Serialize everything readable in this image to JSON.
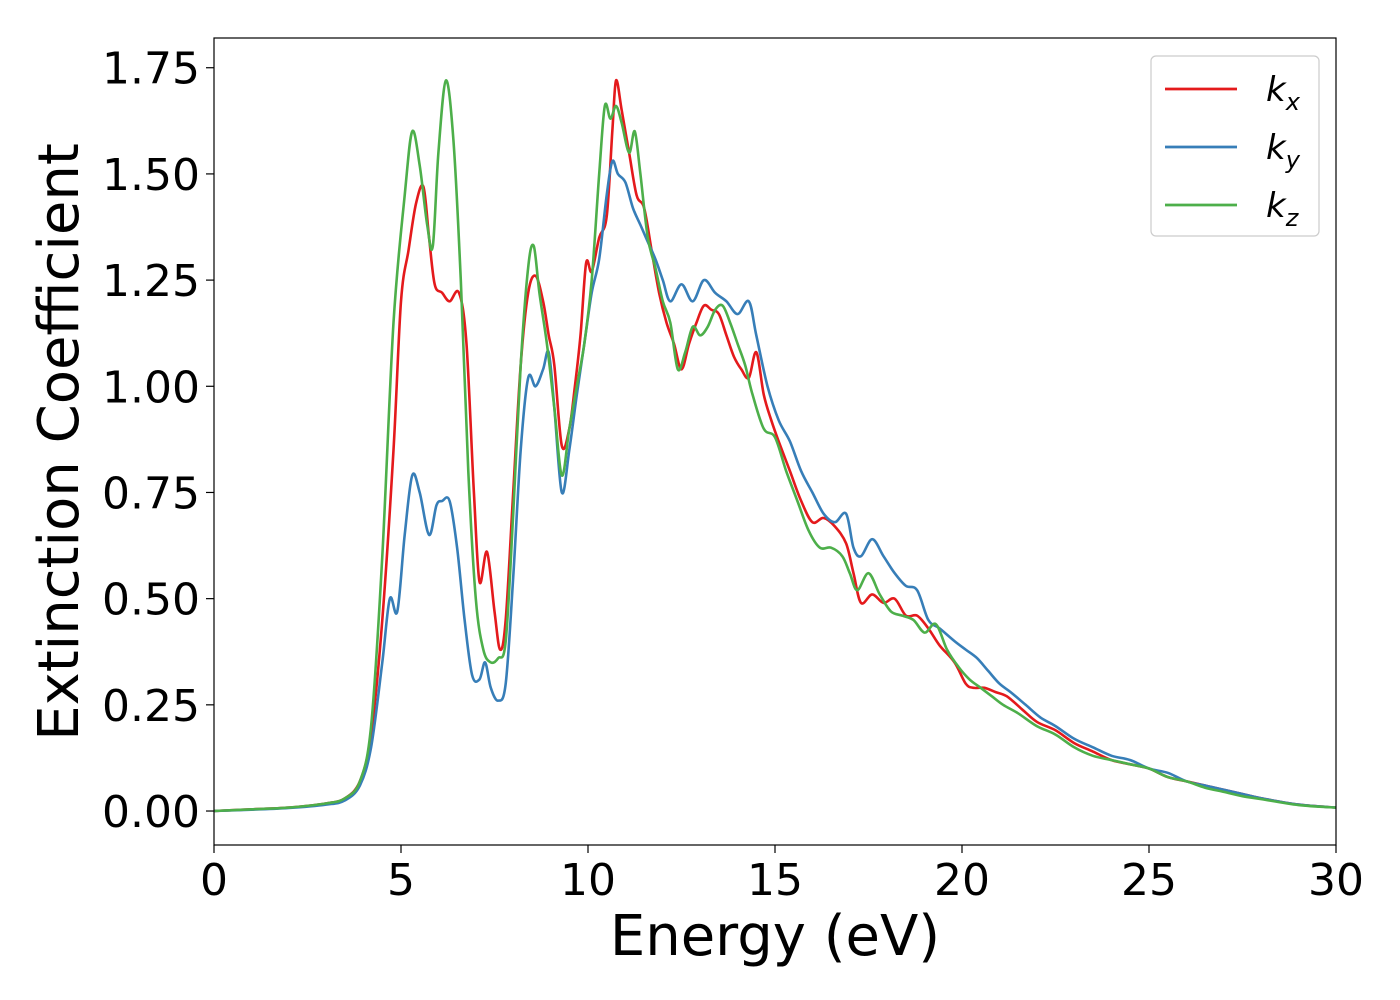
{
  "chart_data": {
    "type": "line",
    "xlabel": "Energy (eV)",
    "ylabel": "Extinction Coefficient",
    "xlim": [
      0,
      30
    ],
    "ylim": [
      -0.08,
      1.82
    ],
    "xticks": [
      0,
      5,
      10,
      15,
      20,
      25,
      30
    ],
    "xtick_labels": [
      "0",
      "5",
      "10",
      "15",
      "20",
      "25",
      "30"
    ],
    "yticks": [
      0,
      0.25,
      0.5,
      0.75,
      1.0,
      1.25,
      1.5,
      1.75
    ],
    "ytick_labels": [
      "0.00",
      "0.25",
      "0.50",
      "0.75",
      "1.00",
      "1.25",
      "1.50",
      "1.75"
    ],
    "grid": false,
    "legend_position": "top-right",
    "series": [
      {
        "name": "k_x",
        "label_base": "k",
        "label_sub": "x",
        "color": "#e41a1c",
        "points": [
          [
            0,
            0
          ],
          [
            1,
            0.004
          ],
          [
            2,
            0.008
          ],
          [
            3,
            0.018
          ],
          [
            3.5,
            0.03
          ],
          [
            3.9,
            0.07
          ],
          [
            4.2,
            0.18
          ],
          [
            4.5,
            0.45
          ],
          [
            4.8,
            0.85
          ],
          [
            5.0,
            1.2
          ],
          [
            5.2,
            1.32
          ],
          [
            5.4,
            1.43
          ],
          [
            5.6,
            1.47
          ],
          [
            5.75,
            1.35
          ],
          [
            5.9,
            1.24
          ],
          [
            6.1,
            1.22
          ],
          [
            6.3,
            1.2
          ],
          [
            6.55,
            1.22
          ],
          [
            6.75,
            1.1
          ],
          [
            6.95,
            0.75
          ],
          [
            7.1,
            0.54
          ],
          [
            7.3,
            0.61
          ],
          [
            7.5,
            0.47
          ],
          [
            7.65,
            0.38
          ],
          [
            7.8,
            0.45
          ],
          [
            8.0,
            0.75
          ],
          [
            8.2,
            1.05
          ],
          [
            8.4,
            1.22
          ],
          [
            8.6,
            1.26
          ],
          [
            8.8,
            1.2
          ],
          [
            8.95,
            1.12
          ],
          [
            9.1,
            1.05
          ],
          [
            9.3,
            0.86
          ],
          [
            9.5,
            0.9
          ],
          [
            9.65,
            1.0
          ],
          [
            9.8,
            1.12
          ],
          [
            9.95,
            1.29
          ],
          [
            10.1,
            1.27
          ],
          [
            10.3,
            1.35
          ],
          [
            10.5,
            1.4
          ],
          [
            10.65,
            1.6
          ],
          [
            10.75,
            1.72
          ],
          [
            10.9,
            1.65
          ],
          [
            11.1,
            1.55
          ],
          [
            11.3,
            1.45
          ],
          [
            11.5,
            1.42
          ],
          [
            11.7,
            1.32
          ],
          [
            11.9,
            1.22
          ],
          [
            12.1,
            1.15
          ],
          [
            12.3,
            1.1
          ],
          [
            12.5,
            1.04
          ],
          [
            12.7,
            1.1
          ],
          [
            12.9,
            1.15
          ],
          [
            13.1,
            1.19
          ],
          [
            13.3,
            1.18
          ],
          [
            13.5,
            1.17
          ],
          [
            13.7,
            1.12
          ],
          [
            13.9,
            1.07
          ],
          [
            14.1,
            1.04
          ],
          [
            14.3,
            1.02
          ],
          [
            14.5,
            1.08
          ],
          [
            14.7,
            0.98
          ],
          [
            14.9,
            0.92
          ],
          [
            15.1,
            0.87
          ],
          [
            15.4,
            0.8
          ],
          [
            15.7,
            0.73
          ],
          [
            16.0,
            0.68
          ],
          [
            16.3,
            0.69
          ],
          [
            16.6,
            0.67
          ],
          [
            16.9,
            0.63
          ],
          [
            17.1,
            0.56
          ],
          [
            17.3,
            0.49
          ],
          [
            17.6,
            0.51
          ],
          [
            17.9,
            0.49
          ],
          [
            18.2,
            0.5
          ],
          [
            18.5,
            0.46
          ],
          [
            18.8,
            0.46
          ],
          [
            19.1,
            0.43
          ],
          [
            19.4,
            0.39
          ],
          [
            19.8,
            0.35
          ],
          [
            20.1,
            0.3
          ],
          [
            20.3,
            0.29
          ],
          [
            20.6,
            0.29
          ],
          [
            20.9,
            0.28
          ],
          [
            21.2,
            0.27
          ],
          [
            21.6,
            0.24
          ],
          [
            22.0,
            0.21
          ],
          [
            22.5,
            0.19
          ],
          [
            23,
            0.16
          ],
          [
            23.5,
            0.14
          ],
          [
            24,
            0.12
          ],
          [
            24.5,
            0.11
          ],
          [
            25,
            0.1
          ],
          [
            25.5,
            0.08
          ],
          [
            26,
            0.07
          ],
          [
            26.5,
            0.06
          ],
          [
            27,
            0.05
          ],
          [
            27.5,
            0.04
          ],
          [
            28,
            0.03
          ],
          [
            29,
            0.015
          ],
          [
            30,
            0.008
          ]
        ]
      },
      {
        "name": "k_y",
        "label_base": "k",
        "label_sub": "y",
        "color": "#377eb8",
        "points": [
          [
            0,
            0
          ],
          [
            1,
            0.003
          ],
          [
            2,
            0.007
          ],
          [
            3,
            0.015
          ],
          [
            3.5,
            0.025
          ],
          [
            3.9,
            0.06
          ],
          [
            4.2,
            0.15
          ],
          [
            4.5,
            0.35
          ],
          [
            4.7,
            0.5
          ],
          [
            4.9,
            0.47
          ],
          [
            5.1,
            0.65
          ],
          [
            5.3,
            0.79
          ],
          [
            5.5,
            0.75
          ],
          [
            5.75,
            0.65
          ],
          [
            5.95,
            0.72
          ],
          [
            6.1,
            0.73
          ],
          [
            6.3,
            0.73
          ],
          [
            6.5,
            0.62
          ],
          [
            6.7,
            0.45
          ],
          [
            6.9,
            0.32
          ],
          [
            7.1,
            0.31
          ],
          [
            7.25,
            0.35
          ],
          [
            7.4,
            0.29
          ],
          [
            7.6,
            0.26
          ],
          [
            7.8,
            0.3
          ],
          [
            8.0,
            0.55
          ],
          [
            8.2,
            0.85
          ],
          [
            8.4,
            1.02
          ],
          [
            8.6,
            1.0
          ],
          [
            8.8,
            1.04
          ],
          [
            8.95,
            1.08
          ],
          [
            9.1,
            0.95
          ],
          [
            9.3,
            0.75
          ],
          [
            9.5,
            0.85
          ],
          [
            9.7,
            0.98
          ],
          [
            9.9,
            1.1
          ],
          [
            10.1,
            1.22
          ],
          [
            10.3,
            1.3
          ],
          [
            10.5,
            1.45
          ],
          [
            10.65,
            1.53
          ],
          [
            10.8,
            1.5
          ],
          [
            11.0,
            1.48
          ],
          [
            11.2,
            1.42
          ],
          [
            11.4,
            1.38
          ],
          [
            11.6,
            1.34
          ],
          [
            11.8,
            1.3
          ],
          [
            12.0,
            1.25
          ],
          [
            12.2,
            1.2
          ],
          [
            12.5,
            1.24
          ],
          [
            12.8,
            1.2
          ],
          [
            13.1,
            1.25
          ],
          [
            13.4,
            1.22
          ],
          [
            13.7,
            1.2
          ],
          [
            14.0,
            1.17
          ],
          [
            14.3,
            1.2
          ],
          [
            14.5,
            1.12
          ],
          [
            14.8,
            1.0
          ],
          [
            15.1,
            0.92
          ],
          [
            15.4,
            0.87
          ],
          [
            15.7,
            0.8
          ],
          [
            16.0,
            0.75
          ],
          [
            16.3,
            0.7
          ],
          [
            16.6,
            0.68
          ],
          [
            16.9,
            0.7
          ],
          [
            17.1,
            0.62
          ],
          [
            17.3,
            0.6
          ],
          [
            17.6,
            0.64
          ],
          [
            17.9,
            0.6
          ],
          [
            18.2,
            0.56
          ],
          [
            18.5,
            0.53
          ],
          [
            18.8,
            0.52
          ],
          [
            19.1,
            0.45
          ],
          [
            19.4,
            0.43
          ],
          [
            19.8,
            0.4
          ],
          [
            20.1,
            0.38
          ],
          [
            20.4,
            0.36
          ],
          [
            20.7,
            0.33
          ],
          [
            21.0,
            0.3
          ],
          [
            21.3,
            0.28
          ],
          [
            21.7,
            0.25
          ],
          [
            22.1,
            0.22
          ],
          [
            22.5,
            0.2
          ],
          [
            23,
            0.17
          ],
          [
            23.5,
            0.15
          ],
          [
            24,
            0.13
          ],
          [
            24.5,
            0.12
          ],
          [
            25,
            0.1
          ],
          [
            25.5,
            0.09
          ],
          [
            26,
            0.07
          ],
          [
            26.5,
            0.06
          ],
          [
            27,
            0.05
          ],
          [
            27.5,
            0.04
          ],
          [
            28,
            0.03
          ],
          [
            29,
            0.015
          ],
          [
            30,
            0.008
          ]
        ]
      },
      {
        "name": "k_z",
        "label_base": "k",
        "label_sub": "z",
        "color": "#4daf4a",
        "points": [
          [
            0,
            0
          ],
          [
            1,
            0.004
          ],
          [
            2,
            0.008
          ],
          [
            3,
            0.018
          ],
          [
            3.5,
            0.03
          ],
          [
            3.9,
            0.07
          ],
          [
            4.2,
            0.2
          ],
          [
            4.5,
            0.6
          ],
          [
            4.8,
            1.15
          ],
          [
            5.1,
            1.45
          ],
          [
            5.3,
            1.6
          ],
          [
            5.5,
            1.52
          ],
          [
            5.7,
            1.38
          ],
          [
            5.85,
            1.33
          ],
          [
            6.0,
            1.55
          ],
          [
            6.2,
            1.72
          ],
          [
            6.4,
            1.58
          ],
          [
            6.6,
            1.25
          ],
          [
            6.8,
            0.8
          ],
          [
            7.0,
            0.5
          ],
          [
            7.2,
            0.38
          ],
          [
            7.4,
            0.35
          ],
          [
            7.6,
            0.36
          ],
          [
            7.8,
            0.4
          ],
          [
            8.0,
            0.7
          ],
          [
            8.2,
            1.05
          ],
          [
            8.4,
            1.28
          ],
          [
            8.55,
            1.33
          ],
          [
            8.7,
            1.22
          ],
          [
            8.9,
            1.1
          ],
          [
            9.1,
            0.95
          ],
          [
            9.3,
            0.79
          ],
          [
            9.5,
            0.9
          ],
          [
            9.7,
            1.0
          ],
          [
            9.9,
            1.1
          ],
          [
            10.1,
            1.25
          ],
          [
            10.3,
            1.5
          ],
          [
            10.45,
            1.66
          ],
          [
            10.6,
            1.63
          ],
          [
            10.75,
            1.66
          ],
          [
            10.9,
            1.62
          ],
          [
            11.1,
            1.55
          ],
          [
            11.25,
            1.6
          ],
          [
            11.4,
            1.5
          ],
          [
            11.6,
            1.35
          ],
          [
            11.8,
            1.28
          ],
          [
            12.0,
            1.2
          ],
          [
            12.2,
            1.15
          ],
          [
            12.4,
            1.04
          ],
          [
            12.6,
            1.08
          ],
          [
            12.8,
            1.14
          ],
          [
            13.0,
            1.12
          ],
          [
            13.2,
            1.14
          ],
          [
            13.4,
            1.18
          ],
          [
            13.6,
            1.19
          ],
          [
            13.8,
            1.15
          ],
          [
            14.0,
            1.1
          ],
          [
            14.2,
            1.05
          ],
          [
            14.4,
            0.98
          ],
          [
            14.7,
            0.9
          ],
          [
            15.0,
            0.88
          ],
          [
            15.3,
            0.8
          ],
          [
            15.6,
            0.73
          ],
          [
            15.9,
            0.66
          ],
          [
            16.2,
            0.62
          ],
          [
            16.5,
            0.62
          ],
          [
            16.8,
            0.6
          ],
          [
            17.0,
            0.56
          ],
          [
            17.2,
            0.52
          ],
          [
            17.5,
            0.56
          ],
          [
            17.8,
            0.51
          ],
          [
            18.1,
            0.47
          ],
          [
            18.4,
            0.46
          ],
          [
            18.7,
            0.45
          ],
          [
            19.0,
            0.42
          ],
          [
            19.3,
            0.44
          ],
          [
            19.6,
            0.38
          ],
          [
            19.9,
            0.34
          ],
          [
            20.2,
            0.31
          ],
          [
            20.5,
            0.29
          ],
          [
            20.8,
            0.27
          ],
          [
            21.1,
            0.25
          ],
          [
            21.5,
            0.23
          ],
          [
            22.0,
            0.2
          ],
          [
            22.5,
            0.18
          ],
          [
            23,
            0.15
          ],
          [
            23.5,
            0.13
          ],
          [
            24,
            0.12
          ],
          [
            24.5,
            0.11
          ],
          [
            25,
            0.1
          ],
          [
            25.5,
            0.08
          ],
          [
            26,
            0.07
          ],
          [
            26.5,
            0.055
          ],
          [
            27,
            0.045
          ],
          [
            27.5,
            0.035
          ],
          [
            28,
            0.028
          ],
          [
            29,
            0.014
          ],
          [
            30,
            0.008
          ]
        ]
      }
    ]
  }
}
